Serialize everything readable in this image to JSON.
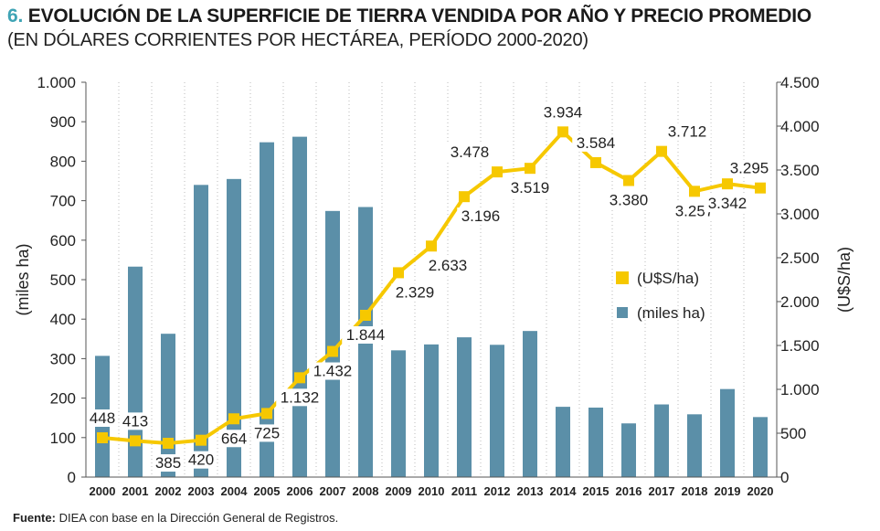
{
  "title": {
    "number": "6.",
    "text": "EVOLUCIÓN DE LA SUPERFICIE DE TIERRA VENDIDA POR AÑO Y PRECIO PROMEDIO"
  },
  "subtitle": "(EN DÓLARES CORRIENTES POR HECTÁREA, PERÍODO 2000-2020)",
  "source": {
    "label": "Fuente:",
    "text": "DIEA con base en la Dirección General de Registros."
  },
  "colors": {
    "bars": "#5b8fa8",
    "line": "#f6c800",
    "accent": "#3fa4b5"
  },
  "chart_data": {
    "type": "bar+line",
    "categories": [
      "2000",
      "2001",
      "2002",
      "2003",
      "2004",
      "2005",
      "2006",
      "2007",
      "2008",
      "2009",
      "2010",
      "2011",
      "2012",
      "2013",
      "2014",
      "2015",
      "2016",
      "2017",
      "2018",
      "2019",
      "2020"
    ],
    "series": [
      {
        "name": "(miles ha)",
        "type": "bar",
        "axis": "left",
        "values": [
          307,
          533,
          363,
          740,
          755,
          848,
          862,
          674,
          684,
          321,
          336,
          354,
          335,
          370,
          178,
          176,
          136,
          184,
          159,
          223,
          152
        ]
      },
      {
        "name": "(U$S/ha)",
        "type": "line",
        "axis": "right",
        "values": [
          448,
          413,
          385,
          420,
          664,
          725,
          1132,
          1432,
          1844,
          2329,
          2633,
          3196,
          3478,
          3519,
          3934,
          3584,
          3380,
          3712,
          3257,
          3342,
          3295
        ],
        "labels": [
          "448",
          "413",
          "385",
          "420",
          "664",
          "725",
          "1.132",
          "1.432",
          "1.844",
          "2.329",
          "2.633",
          "3.196",
          "3.478",
          "3.519",
          "3.934",
          "3.584",
          "3.380",
          "3.712",
          "3.257",
          "3.342",
          "3.295"
        ]
      }
    ],
    "y_left": {
      "label": "(miles ha)",
      "lim": [
        0,
        1000
      ],
      "ticks": [
        0,
        100,
        200,
        300,
        400,
        500,
        600,
        700,
        800,
        900,
        1000
      ],
      "tick_labels": [
        "0",
        "100",
        "200",
        "300",
        "400",
        "500",
        "600",
        "700",
        "800",
        "900",
        "1.000"
      ]
    },
    "y_right": {
      "label": "(U$S/ha)",
      "lim": [
        0,
        4500
      ],
      "ticks": [
        0,
        500,
        1000,
        1500,
        2000,
        2500,
        3000,
        3500,
        4000,
        4500
      ],
      "tick_labels": [
        "0",
        "500",
        "1.000",
        "1.500",
        "2.000",
        "2.500",
        "3.000",
        "3.500",
        "4.000",
        "4.500"
      ]
    },
    "grid": "vertical-dashed",
    "legend_position": "right-middle"
  }
}
